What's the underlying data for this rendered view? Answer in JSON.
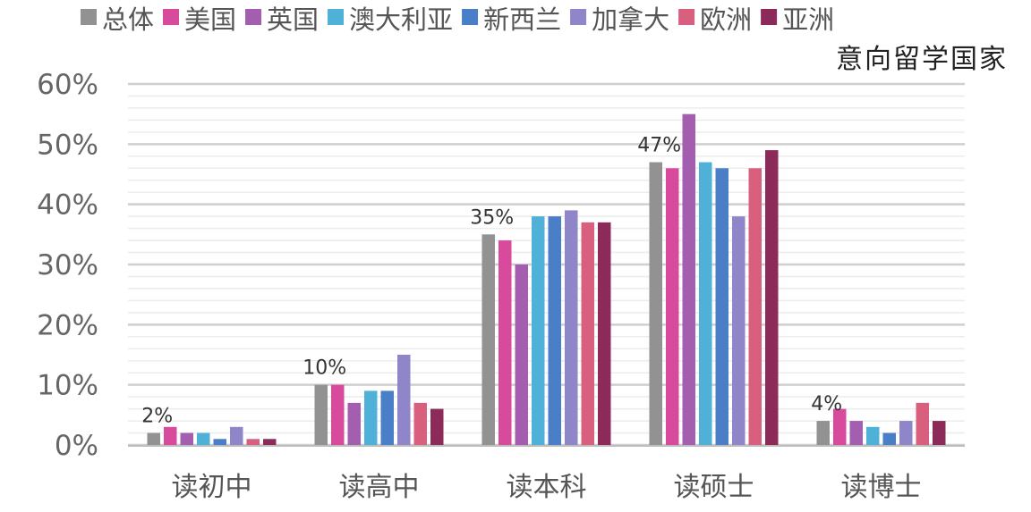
{
  "chart_data": {
    "type": "bar",
    "title": "",
    "subtitle": "意向留学国家",
    "xlabel": "",
    "ylabel": "",
    "ylim": [
      0,
      60
    ],
    "yticks": [
      "0%",
      "10%",
      "20%",
      "30%",
      "40%",
      "50%",
      "60%"
    ],
    "grid": true,
    "legend_position": "top",
    "categories": [
      "读初中",
      "读高中",
      "读本科",
      "读硕士",
      "读博士"
    ],
    "series": [
      {
        "name": "总体",
        "color": "#929292",
        "values": [
          2,
          10,
          35,
          47,
          4
        ]
      },
      {
        "name": "美国",
        "color": "#d84a9c",
        "values": [
          3,
          10,
          34,
          46,
          6
        ]
      },
      {
        "name": "英国",
        "color": "#a45eb0",
        "values": [
          2,
          7,
          30,
          55,
          4
        ]
      },
      {
        "name": "澳大利亚",
        "color": "#4fb0d8",
        "values": [
          2,
          9,
          38,
          47,
          3
        ]
      },
      {
        "name": "新西兰",
        "color": "#4a7fc8",
        "values": [
          1,
          9,
          38,
          46,
          2
        ]
      },
      {
        "name": "加拿大",
        "color": "#8e86c8",
        "values": [
          3,
          15,
          39,
          38,
          4
        ]
      },
      {
        "name": "欧洲",
        "color": "#d8607e",
        "values": [
          1,
          7,
          37,
          46,
          7
        ]
      },
      {
        "name": "亚洲",
        "color": "#8c2a5a",
        "values": [
          1,
          6,
          37,
          49,
          4
        ]
      }
    ],
    "data_labels": [
      "2%",
      "10%",
      "35%",
      "47%",
      "4%"
    ]
  }
}
